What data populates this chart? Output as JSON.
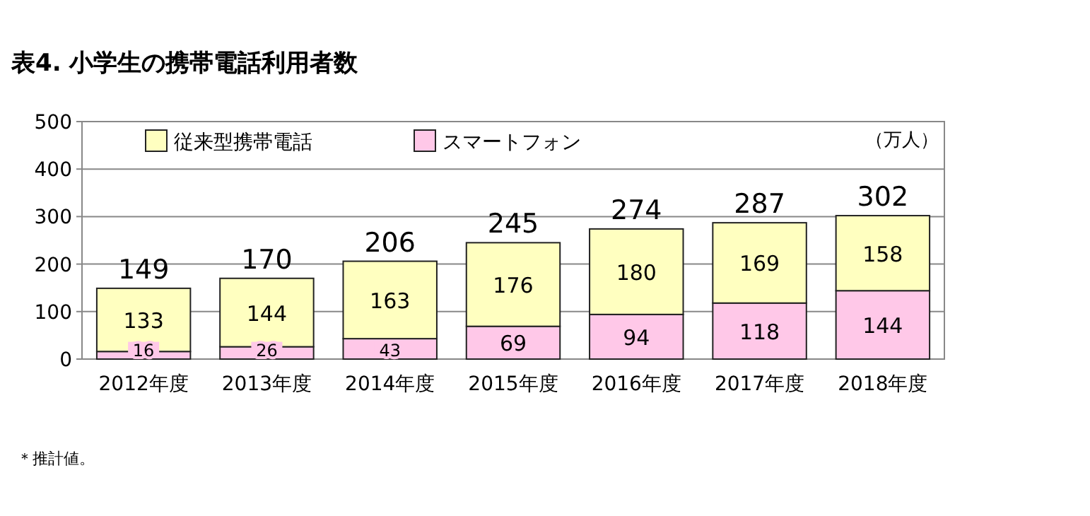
{
  "chart_data": {
    "type": "bar",
    "title": "表4. 小学生の携帯電話利用者数",
    "ylabel": "（万人）",
    "categories": [
      "2012年度",
      "2013年度",
      "2014年度",
      "2015年度",
      "2016年度",
      "2017年度",
      "2018年度"
    ],
    "stacked": true,
    "series": [
      {
        "name": "スマートフォン",
        "color": "#ffc8e8",
        "values": [
          16,
          26,
          43,
          69,
          94,
          118,
          144
        ]
      },
      {
        "name": "従来型携帯電話",
        "color": "#ffffc0",
        "values": [
          133,
          144,
          163,
          176,
          180,
          169,
          158
        ]
      }
    ],
    "totals": [
      "149",
      "170",
      "206",
      "245",
      "274",
      "287",
      "302"
    ],
    "data_labels": true,
    "ylim": [
      0,
      500
    ],
    "yticks": [
      0,
      100,
      200,
      300,
      400,
      500
    ],
    "grid": "y",
    "legend": "top left",
    "annotations": [
      "＊推計値。"
    ]
  }
}
